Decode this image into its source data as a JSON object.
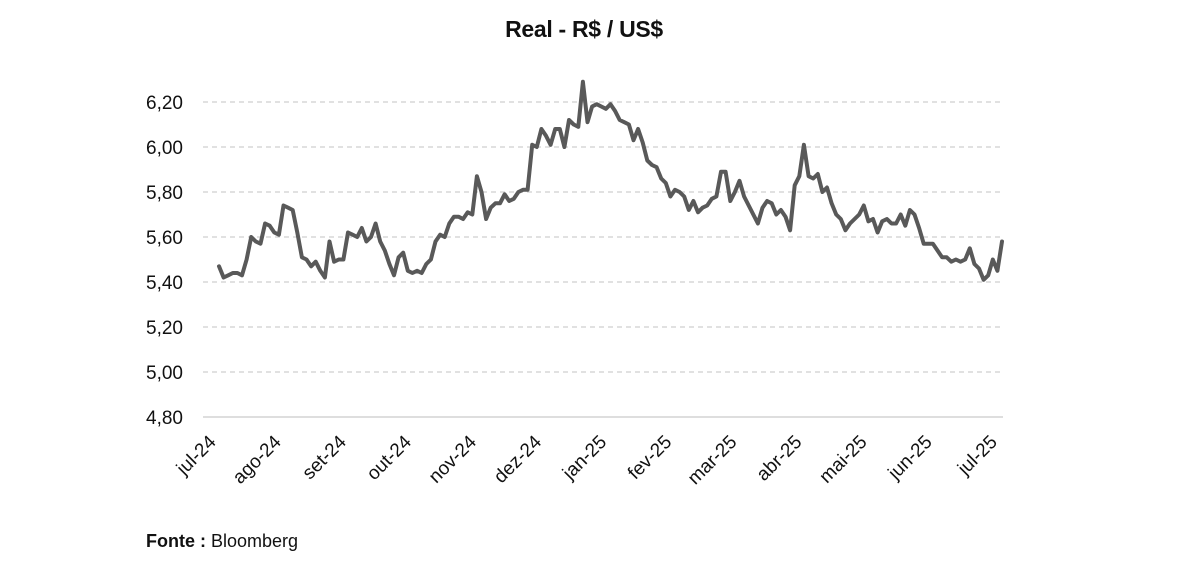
{
  "source": {
    "label": "Fonte :",
    "value": "Bloomberg"
  },
  "chart_data": {
    "type": "line",
    "title": "Real - R$ / US$",
    "xlabel": "",
    "ylabel": "",
    "ylim": [
      4.8,
      6.2
    ],
    "yticks": [
      "6,20",
      "6,00",
      "5,80",
      "5,60",
      "5,40",
      "5,20",
      "5,00",
      "4,80"
    ],
    "ytick_values": [
      6.2,
      6.0,
      5.8,
      5.6,
      5.4,
      5.2,
      5.0,
      4.8
    ],
    "xticks": [
      "jul-24",
      "ago-24",
      "set-24",
      "out-24",
      "nov-24",
      "dez-24",
      "jan-25",
      "fev-25",
      "mar-25",
      "abr-25",
      "mai-25",
      "jun-25",
      "jul-25"
    ],
    "grid": "horizontal dashed",
    "line_color": "#595959",
    "series": [
      {
        "values": [
          5.47,
          5.42,
          5.43,
          5.44,
          5.44,
          5.43,
          5.5,
          5.6,
          5.58,
          5.57,
          5.66,
          5.65,
          5.62,
          5.61,
          5.74,
          5.73,
          5.72,
          5.62,
          5.51,
          5.5,
          5.47,
          5.49,
          5.45,
          5.42,
          5.58,
          5.49,
          5.5,
          5.5,
          5.62,
          5.61,
          5.6,
          5.64,
          5.58,
          5.6,
          5.66,
          5.58,
          5.54,
          5.48,
          5.43,
          5.51,
          5.53,
          5.45,
          5.44,
          5.45,
          5.44,
          5.48,
          5.5,
          5.58,
          5.61,
          5.6,
          5.66,
          5.69,
          5.69,
          5.68,
          5.71,
          5.7,
          5.87,
          5.8,
          5.68,
          5.73,
          5.75,
          5.75,
          5.79,
          5.76,
          5.77,
          5.8,
          5.81,
          5.81,
          6.01,
          6.0,
          6.08,
          6.05,
          6.01,
          6.08,
          6.08,
          6.0,
          6.12,
          6.1,
          6.09,
          6.29,
          6.11,
          6.18,
          6.19,
          6.18,
          6.17,
          6.19,
          6.16,
          6.12,
          6.11,
          6.1,
          6.03,
          6.08,
          6.02,
          5.94,
          5.92,
          5.91,
          5.86,
          5.84,
          5.78,
          5.81,
          5.8,
          5.78,
          5.72,
          5.76,
          5.71,
          5.73,
          5.74,
          5.77,
          5.78,
          5.89,
          5.89,
          5.76,
          5.8,
          5.85,
          5.78,
          5.74,
          5.7,
          5.66,
          5.73,
          5.76,
          5.75,
          5.7,
          5.72,
          5.69,
          5.63,
          5.83,
          5.87,
          6.01,
          5.87,
          5.86,
          5.88,
          5.8,
          5.82,
          5.75,
          5.7,
          5.68,
          5.63,
          5.66,
          5.68,
          5.7,
          5.74,
          5.67,
          5.68,
          5.62,
          5.67,
          5.68,
          5.66,
          5.66,
          5.7,
          5.65,
          5.72,
          5.7,
          5.64,
          5.57,
          5.57,
          5.57,
          5.54,
          5.51,
          5.51,
          5.49,
          5.5,
          5.49,
          5.5,
          5.55,
          5.48,
          5.46,
          5.41,
          5.43,
          5.5,
          5.45,
          5.58
        ]
      }
    ]
  }
}
